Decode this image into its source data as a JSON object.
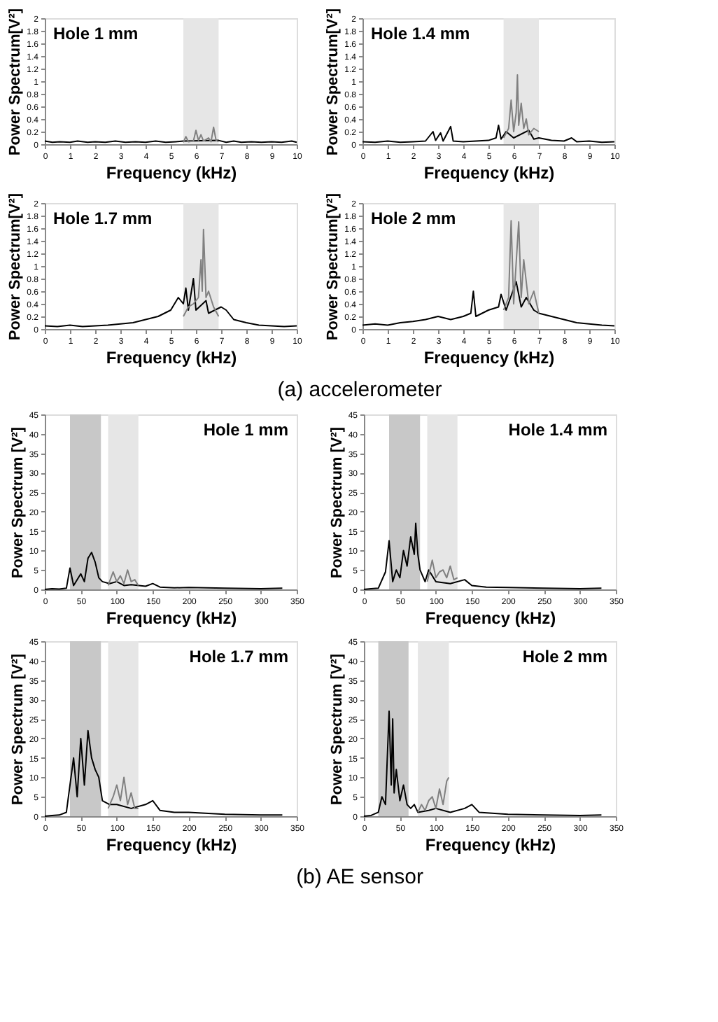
{
  "chart_data": [
    {
      "type": "line",
      "title": "Hole 1 mm",
      "xlabel": "Frequency (kHz)",
      "ylabel": "Power Spectrum[V²]",
      "xlim": [
        0,
        10
      ],
      "ylim": [
        0,
        2
      ],
      "xticks": [
        0,
        1,
        2,
        3,
        4,
        5,
        6,
        7,
        8,
        9,
        10
      ],
      "yticks": [
        0,
        0.2,
        0.4,
        0.6,
        0.8,
        1,
        1.2,
        1.4,
        1.6,
        1.8,
        2
      ],
      "grid": false,
      "bands": [
        {
          "axis": "x",
          "from": 5.5,
          "to": 6.9,
          "color": "#e6e6e6"
        }
      ],
      "series": [
        {
          "color": "#000000",
          "type": "line",
          "x": [
            0,
            0.3,
            0.6,
            1,
            1.3,
            1.7,
            2,
            2.4,
            2.8,
            3.2,
            3.6,
            4,
            4.4,
            4.8,
            5.2,
            5.5,
            6.9,
            7.2,
            7.5,
            7.8,
            8.2,
            8.6,
            9,
            9.4,
            9.8,
            10
          ],
          "values": [
            0.05,
            0.03,
            0.04,
            0.03,
            0.05,
            0.03,
            0.04,
            0.03,
            0.05,
            0.03,
            0.04,
            0.03,
            0.05,
            0.03,
            0.04,
            0.05,
            0.06,
            0.03,
            0.05,
            0.03,
            0.04,
            0.03,
            0.04,
            0.03,
            0.05,
            0.03
          ]
        },
        {
          "color": "#808080",
          "type": "line",
          "x": [
            5.5,
            5.6,
            5.7,
            5.9,
            6,
            6.1,
            6.2,
            6.3,
            6.5,
            6.6,
            6.7,
            6.8,
            6.9
          ],
          "values": [
            0.03,
            0.12,
            0.04,
            0.05,
            0.22,
            0.06,
            0.15,
            0.05,
            0.1,
            0.04,
            0.27,
            0.06,
            0.04
          ]
        }
      ]
    },
    {
      "type": "line",
      "title": "Hole 1.4 mm",
      "xlabel": "Frequency (kHz)",
      "ylabel": "Power Spectrum[V²]",
      "xlim": [
        0,
        10
      ],
      "ylim": [
        0,
        2
      ],
      "xticks": [
        0,
        1,
        2,
        3,
        4,
        5,
        6,
        7,
        8,
        9,
        10
      ],
      "yticks": [
        0,
        0.2,
        0.4,
        0.6,
        0.8,
        1,
        1.2,
        1.4,
        1.6,
        1.8,
        2
      ],
      "grid": false,
      "bands": [
        {
          "axis": "x",
          "from": 5.6,
          "to": 7,
          "color": "#e6e6e6"
        }
      ],
      "series": [
        {
          "color": "#000000",
          "type": "line",
          "x": [
            0,
            0.5,
            1,
            1.5,
            2,
            2.5,
            2.8,
            2.9,
            3.1,
            3.2,
            3.5,
            3.6,
            4,
            4.5,
            5,
            5.3,
            5.4,
            5.5,
            5.7,
            6,
            6.6,
            6.8,
            7,
            7.5,
            8,
            8.3,
            8.5,
            9,
            9.5,
            10
          ],
          "values": [
            0.04,
            0.03,
            0.05,
            0.03,
            0.04,
            0.05,
            0.2,
            0.06,
            0.18,
            0.05,
            0.28,
            0.05,
            0.04,
            0.05,
            0.06,
            0.1,
            0.3,
            0.08,
            0.2,
            0.1,
            0.22,
            0.08,
            0.1,
            0.06,
            0.05,
            0.1,
            0.04,
            0.05,
            0.03,
            0.04
          ]
        },
        {
          "color": "#808080",
          "type": "line",
          "x": [
            5.6,
            5.8,
            5.9,
            6,
            6.1,
            6.15,
            6.2,
            6.3,
            6.4,
            6.5,
            6.6,
            6.8,
            7
          ],
          "values": [
            0.1,
            0.25,
            0.7,
            0.2,
            0.5,
            1.1,
            0.3,
            0.65,
            0.25,
            0.4,
            0.15,
            0.25,
            0.2
          ]
        }
      ]
    },
    {
      "type": "line",
      "title": "Hole 1.7 mm",
      "xlabel": "Frequency (kHz)",
      "ylabel": "Power Spectrum[V²]",
      "xlim": [
        0,
        10
      ],
      "ylim": [
        0,
        2
      ],
      "xticks": [
        0,
        1,
        2,
        3,
        4,
        5,
        6,
        7,
        8,
        9,
        10
      ],
      "yticks": [
        0,
        0.2,
        0.4,
        0.6,
        0.8,
        1,
        1.2,
        1.4,
        1.6,
        1.8,
        2
      ],
      "grid": false,
      "bands": [
        {
          "axis": "x",
          "from": 5.5,
          "to": 6.9,
          "color": "#e6e6e6"
        }
      ],
      "series": [
        {
          "color": "#000000",
          "type": "line",
          "x": [
            0,
            0.5,
            1,
            1.5,
            2,
            2.5,
            3,
            3.5,
            4,
            4.5,
            5,
            5.3,
            5.5,
            5.6,
            5.7,
            5.9,
            6,
            6.4,
            6.5,
            7,
            7.2,
            7.5,
            8,
            8.5,
            9,
            9.5,
            10
          ],
          "values": [
            0.05,
            0.04,
            0.06,
            0.04,
            0.05,
            0.06,
            0.08,
            0.1,
            0.15,
            0.2,
            0.3,
            0.5,
            0.4,
            0.65,
            0.3,
            0.8,
            0.3,
            0.45,
            0.25,
            0.35,
            0.3,
            0.15,
            0.1,
            0.06,
            0.05,
            0.04,
            0.05
          ]
        },
        {
          "color": "#808080",
          "type": "line",
          "x": [
            5.5,
            5.7,
            5.9,
            6.1,
            6.2,
            6.25,
            6.3,
            6.4,
            6.5,
            6.7,
            6.9
          ],
          "values": [
            0.2,
            0.35,
            0.4,
            0.5,
            1.1,
            0.6,
            1.58,
            0.5,
            0.6,
            0.35,
            0.2
          ]
        }
      ]
    },
    {
      "type": "line",
      "title": "Hole 2 mm",
      "xlabel": "Frequency (kHz)",
      "ylabel": "Power Spectrum[V²]",
      "xlim": [
        0,
        10
      ],
      "ylim": [
        0,
        2
      ],
      "xticks": [
        0,
        1,
        2,
        3,
        4,
        5,
        6,
        7,
        8,
        9,
        10
      ],
      "yticks": [
        0,
        0.2,
        0.4,
        0.6,
        0.8,
        1,
        1.2,
        1.4,
        1.6,
        1.8,
        2
      ],
      "grid": false,
      "bands": [
        {
          "axis": "x",
          "from": 5.6,
          "to": 7,
          "color": "#e6e6e6"
        }
      ],
      "annotations": [
        "(a)  accelerometer"
      ],
      "series": [
        {
          "color": "#000000",
          "type": "line",
          "x": [
            0,
            0.5,
            1,
            1.5,
            2,
            2.5,
            3,
            3.5,
            4,
            4.3,
            4.4,
            4.5,
            5,
            5.4,
            5.5,
            5.7,
            6.1,
            6.3,
            6.5,
            6.8,
            7,
            7.5,
            8,
            8.5,
            9,
            9.5,
            10
          ],
          "values": [
            0.06,
            0.08,
            0.06,
            0.1,
            0.12,
            0.15,
            0.2,
            0.15,
            0.2,
            0.25,
            0.6,
            0.2,
            0.3,
            0.35,
            0.55,
            0.3,
            0.75,
            0.35,
            0.5,
            0.3,
            0.25,
            0.2,
            0.15,
            0.1,
            0.08,
            0.06,
            0.05
          ]
        },
        {
          "color": "#808080",
          "type": "line",
          "x": [
            5.6,
            5.8,
            5.9,
            6,
            6.2,
            6.3,
            6.4,
            6.6,
            6.8,
            7
          ],
          "values": [
            0.3,
            0.5,
            1.72,
            0.4,
            1.7,
            0.5,
            1.1,
            0.4,
            0.6,
            0.25
          ]
        }
      ]
    },
    {
      "type": "line",
      "title": "Hole 1 mm",
      "xlabel": "Frequency (kHz)",
      "ylabel": "Power Spectrum [V²]",
      "xlim": [
        0,
        350
      ],
      "ylim": [
        0,
        45
      ],
      "xticks": [
        0,
        50,
        100,
        150,
        200,
        250,
        300,
        350
      ],
      "yticks": [
        0,
        5,
        10,
        15,
        20,
        25,
        30,
        35,
        40,
        45
      ],
      "grid": false,
      "bands": [
        {
          "axis": "x",
          "from": 35,
          "to": 78,
          "color": "#c8c8c8"
        },
        {
          "axis": "x",
          "from": 88,
          "to": 130,
          "color": "#e6e6e6"
        }
      ],
      "series": [
        {
          "color": "#000000",
          "type": "line",
          "x": [
            0,
            10,
            20,
            30,
            35,
            40,
            50,
            55,
            60,
            65,
            70,
            75,
            80,
            90,
            100,
            110,
            120,
            140,
            150,
            160,
            180,
            200,
            250,
            300,
            330
          ],
          "values": [
            0,
            0.2,
            0.1,
            0.3,
            5.5,
            1,
            4,
            2,
            8,
            9.5,
            7,
            3,
            2,
            1.5,
            2,
            1,
            1.2,
            0.8,
            1.5,
            0.6,
            0.4,
            0.5,
            0.3,
            0.2,
            0.3
          ]
        },
        {
          "color": "#808080",
          "type": "line",
          "x": [
            88,
            95,
            100,
            105,
            110,
            115,
            120,
            125,
            130
          ],
          "values": [
            1,
            4.5,
            2,
            3.5,
            1.5,
            5,
            2,
            2.5,
            1
          ]
        }
      ]
    },
    {
      "type": "line",
      "title": "Hole 1.4 mm",
      "xlabel": "Frequency (kHz)",
      "ylabel": "Power Spectrum [V²]",
      "xlim": [
        0,
        350
      ],
      "ylim": [
        0,
        45
      ],
      "xticks": [
        0,
        50,
        100,
        150,
        200,
        250,
        300,
        350
      ],
      "yticks": [
        0,
        5,
        10,
        15,
        20,
        25,
        30,
        35,
        40,
        45
      ],
      "grid": false,
      "bands": [
        {
          "axis": "x",
          "from": 35,
          "to": 78,
          "color": "#c8c8c8"
        },
        {
          "axis": "x",
          "from": 88,
          "to": 130,
          "color": "#e6e6e6"
        }
      ],
      "series": [
        {
          "color": "#000000",
          "type": "line",
          "x": [
            0,
            10,
            20,
            30,
            35,
            40,
            45,
            50,
            55,
            60,
            65,
            70,
            72,
            75,
            78,
            85,
            90,
            100,
            120,
            140,
            150,
            170,
            200,
            250,
            300,
            330
          ],
          "values": [
            0,
            0.2,
            0.3,
            4.5,
            12.5,
            2,
            5,
            3,
            10,
            6,
            13.5,
            9,
            17,
            9,
            5,
            2,
            5,
            2,
            1.5,
            2.5,
            1,
            0.6,
            0.5,
            0.3,
            0.2,
            0.3
          ]
        },
        {
          "color": "#808080",
          "type": "line",
          "x": [
            88,
            95,
            100,
            105,
            110,
            115,
            120,
            125,
            130
          ],
          "values": [
            2,
            7.5,
            3,
            4.5,
            5,
            3,
            6,
            2.5,
            3
          ]
        }
      ]
    },
    {
      "type": "line",
      "title": "Hole 1.7 mm",
      "xlabel": "Frequency (kHz)",
      "ylabel": "Power Spectrum [V²]",
      "xlim": [
        0,
        350
      ],
      "ylim": [
        0,
        45
      ],
      "xticks": [
        0,
        50,
        100,
        150,
        200,
        250,
        300,
        350
      ],
      "yticks": [
        0,
        5,
        10,
        15,
        20,
        25,
        30,
        35,
        40,
        45
      ],
      "grid": false,
      "bands": [
        {
          "axis": "x",
          "from": 35,
          "to": 78,
          "color": "#c8c8c8"
        },
        {
          "axis": "x",
          "from": 88,
          "to": 130,
          "color": "#e6e6e6"
        }
      ],
      "series": [
        {
          "color": "#000000",
          "type": "line",
          "x": [
            0,
            10,
            20,
            30,
            40,
            45,
            50,
            55,
            60,
            65,
            70,
            75,
            80,
            90,
            100,
            120,
            140,
            150,
            160,
            180,
            200,
            250,
            300,
            330
          ],
          "values": [
            0,
            0.2,
            0.3,
            1,
            15,
            5,
            20,
            8,
            22,
            15,
            12,
            10,
            4,
            3,
            3,
            2,
            3,
            4,
            1.5,
            1,
            1,
            0.5,
            0.3,
            0.3
          ]
        },
        {
          "color": "#808080",
          "type": "line",
          "x": [
            88,
            95,
            100,
            105,
            110,
            115,
            120,
            125,
            130
          ],
          "values": [
            2,
            5,
            8,
            4,
            10,
            3,
            6,
            2,
            2
          ]
        }
      ]
    },
    {
      "type": "line",
      "title": "Hole 2 mm",
      "xlabel": "Frequency (kHz)",
      "ylabel": "Power Spectrum [V²]",
      "xlim": [
        0,
        350
      ],
      "ylim": [
        0,
        45
      ],
      "xticks": [
        0,
        50,
        100,
        150,
        200,
        250,
        300,
        350
      ],
      "yticks": [
        0,
        5,
        10,
        15,
        20,
        25,
        30,
        35,
        40,
        45
      ],
      "grid": false,
      "bands": [
        {
          "axis": "x",
          "from": 20,
          "to": 62,
          "color": "#c8c8c8"
        },
        {
          "axis": "x",
          "from": 75,
          "to": 118,
          "color": "#e6e6e6"
        }
      ],
      "annotations": [
        "(b)  AE sensor"
      ],
      "series": [
        {
          "color": "#000000",
          "type": "line",
          "x": [
            0,
            10,
            20,
            25,
            30,
            35,
            38,
            40,
            42,
            45,
            50,
            55,
            60,
            65,
            70,
            75,
            90,
            100,
            120,
            140,
            150,
            160,
            200,
            250,
            300,
            330
          ],
          "values": [
            0,
            0.2,
            1,
            5,
            3,
            27,
            8,
            25,
            6,
            12,
            4,
            8,
            3,
            2,
            3,
            1,
            1.5,
            2,
            1,
            2,
            3,
            1,
            0.5,
            0.3,
            0.2,
            0.3
          ]
        },
        {
          "color": "#808080",
          "type": "line",
          "x": [
            75,
            80,
            85,
            90,
            95,
            100,
            105,
            110,
            115,
            118
          ],
          "values": [
            1,
            3,
            1.5,
            4,
            5,
            2,
            7,
            3,
            9,
            10
          ]
        }
      ]
    }
  ]
}
